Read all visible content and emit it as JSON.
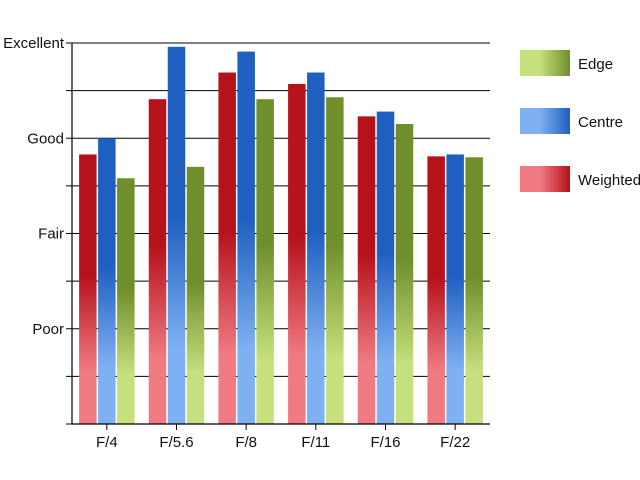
{
  "chart_data": {
    "type": "bar",
    "title": "",
    "xlabel": "",
    "ylabel": "",
    "categories": [
      "F/4",
      "F/5.6",
      "F/8",
      "F/11",
      "F/16",
      "F/22"
    ],
    "y_ticks": [
      {
        "value": 0,
        "label": ""
      },
      {
        "value": 0.5,
        "label": ""
      },
      {
        "value": 1,
        "label": "Poor"
      },
      {
        "value": 1.5,
        "label": ""
      },
      {
        "value": 2,
        "label": "Fair"
      },
      {
        "value": 2.5,
        "label": ""
      },
      {
        "value": 3,
        "label": "Good"
      },
      {
        "value": 3.5,
        "label": ""
      },
      {
        "value": 4,
        "label": "Excellent"
      }
    ],
    "ylim": [
      0,
      4
    ],
    "grid": true,
    "legend_position": "right",
    "series": [
      {
        "name": "Weighted",
        "color_dark": "#b5121b",
        "color_light": "#f07a82",
        "values": [
          2.83,
          3.41,
          3.69,
          3.57,
          3.23,
          2.81
        ]
      },
      {
        "name": "Centre",
        "color_dark": "#1f5fc0",
        "color_light": "#7fb0f2",
        "values": [
          3.0,
          3.96,
          3.91,
          3.69,
          3.28,
          2.83
        ]
      },
      {
        "name": "Edge",
        "color_dark": "#6f8f2a",
        "color_light": "#c5e07c",
        "values": [
          2.58,
          2.7,
          3.41,
          3.43,
          3.15,
          2.8
        ]
      }
    ],
    "legend_order": [
      "Edge",
      "Centre",
      "Weighted"
    ]
  }
}
